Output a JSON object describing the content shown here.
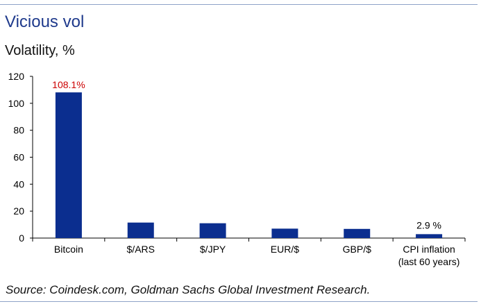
{
  "header": {
    "title": "Vicious vol",
    "subtitle": "Volatility, %"
  },
  "footer": {
    "source": "Source: Coindesk.com, Goldman Sachs Global Investment Research."
  },
  "colors": {
    "bar": "#0b2e8f",
    "highlight_label": "#cc0000",
    "rule": "#8ea2c8"
  },
  "chart_data": {
    "type": "bar",
    "title": "Vicious vol",
    "subtitle": "Volatility, %",
    "categories": [
      "Bitcoin",
      "$/ARS",
      "$/JPY",
      "EUR/$",
      "GBP/$",
      "CPI inflation\n(last 60 years)"
    ],
    "values": [
      108.1,
      11.5,
      11.0,
      7.0,
      6.8,
      2.9
    ],
    "data_labels": [
      "108.1%",
      "",
      "",
      "",
      "",
      "2.9 %"
    ],
    "ylim": [
      0,
      120
    ],
    "yticks": [
      0,
      20,
      40,
      60,
      80,
      100,
      120
    ],
    "xlabel": "",
    "ylabel": "",
    "grid": false,
    "legend": "none"
  }
}
